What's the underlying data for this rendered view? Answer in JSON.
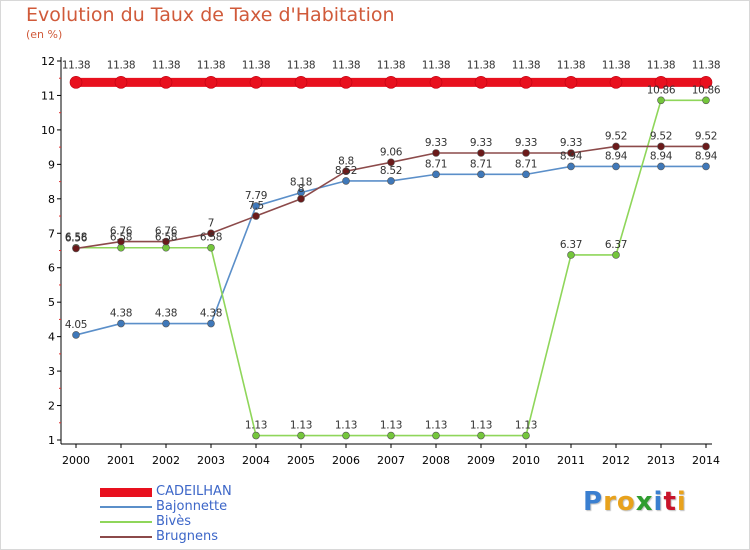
{
  "header": {
    "title": "Evolution du Taux de Taxe d'Habitation",
    "unit": "(en %)"
  },
  "brand": {
    "text": "Proxiti",
    "letters": [
      {
        "ch": "P",
        "color": "#3a7fd0"
      },
      {
        "ch": "r",
        "color": "#e8a21c"
      },
      {
        "ch": "o",
        "color": "#e8a21c"
      },
      {
        "ch": "x",
        "color": "#2f9d2f"
      },
      {
        "ch": "i",
        "color": "#3a7fd0"
      },
      {
        "ch": "t",
        "color": "#c8142a"
      },
      {
        "ch": "i",
        "color": "#e8a21c"
      }
    ]
  },
  "chart_data": {
    "type": "line",
    "title": "Evolution du Taux de Taxe d'Habitation",
    "subtitle": "(en %)",
    "x": [
      "2000",
      "2001",
      "2002",
      "2003",
      "2004",
      "2005",
      "2006",
      "2007",
      "2008",
      "2009",
      "2010",
      "2011",
      "2012",
      "2013",
      "2014"
    ],
    "ylim": [
      1,
      12
    ],
    "yticks": [
      1,
      2,
      3,
      4,
      5,
      6,
      7,
      8,
      9,
      10,
      11,
      12
    ],
    "grid": false,
    "legend_position": "bottom-left",
    "series": [
      {
        "name": "CADEILHAN",
        "color": "#e8101e",
        "style": "thick",
        "values": [
          11.38,
          11.38,
          11.38,
          11.38,
          11.38,
          11.38,
          11.38,
          11.38,
          11.38,
          11.38,
          11.38,
          11.38,
          11.38,
          11.38,
          11.38
        ],
        "labels": [
          "11.38",
          "11.38",
          "11.38",
          "11.38",
          "11.38",
          "11.38",
          "11.38",
          "11.38",
          "11.38",
          "11.38",
          "11.38",
          "11.38",
          "11.38",
          "11.38",
          "11.38"
        ]
      },
      {
        "name": "Bajonnette",
        "color": "#5b8fc9",
        "marker": "#3f78b9",
        "values": [
          4.05,
          4.38,
          4.38,
          4.38,
          7.79,
          8.18,
          8.52,
          8.52,
          8.71,
          8.71,
          8.71,
          8.94,
          8.94,
          8.94,
          8.94
        ],
        "labels": [
          "4.05",
          "4.38",
          "4.38",
          "4.38",
          "7.79",
          "8.18",
          "8.52",
          "8.52",
          "8.71",
          "8.71",
          "8.71",
          "8.94",
          "8.94",
          "8.94",
          "8.94"
        ]
      },
      {
        "name": "Bivès",
        "color": "#8fd65a",
        "marker": "#74c63b",
        "values": [
          6.58,
          6.58,
          6.58,
          6.58,
          1.13,
          1.13,
          1.13,
          1.13,
          1.13,
          1.13,
          1.13,
          6.37,
          6.37,
          10.86,
          10.86
        ],
        "labels": [
          "6.58",
          "6.58",
          "6.58",
          "6.58",
          "1.13",
          "1.13",
          "1.13",
          "1.13",
          "1.13",
          "1.13",
          "1.13",
          "6.37",
          "6.37",
          "10.86",
          "10.86"
        ]
      },
      {
        "name": "Brugnens",
        "color": "#8c4a4a",
        "marker": "#6b1a1a",
        "values": [
          6.56,
          6.76,
          6.76,
          7,
          7.5,
          8,
          8.8,
          9.06,
          9.33,
          9.33,
          9.33,
          9.33,
          9.52,
          9.52,
          9.52
        ],
        "labels": [
          "6.56",
          "6.76",
          "6.76",
          "7",
          "7.5",
          "8",
          "8.8",
          "9.06",
          "9.33",
          "9.33",
          "9.33",
          "9.33",
          "9.52",
          "9.52",
          "9.52"
        ]
      }
    ]
  }
}
